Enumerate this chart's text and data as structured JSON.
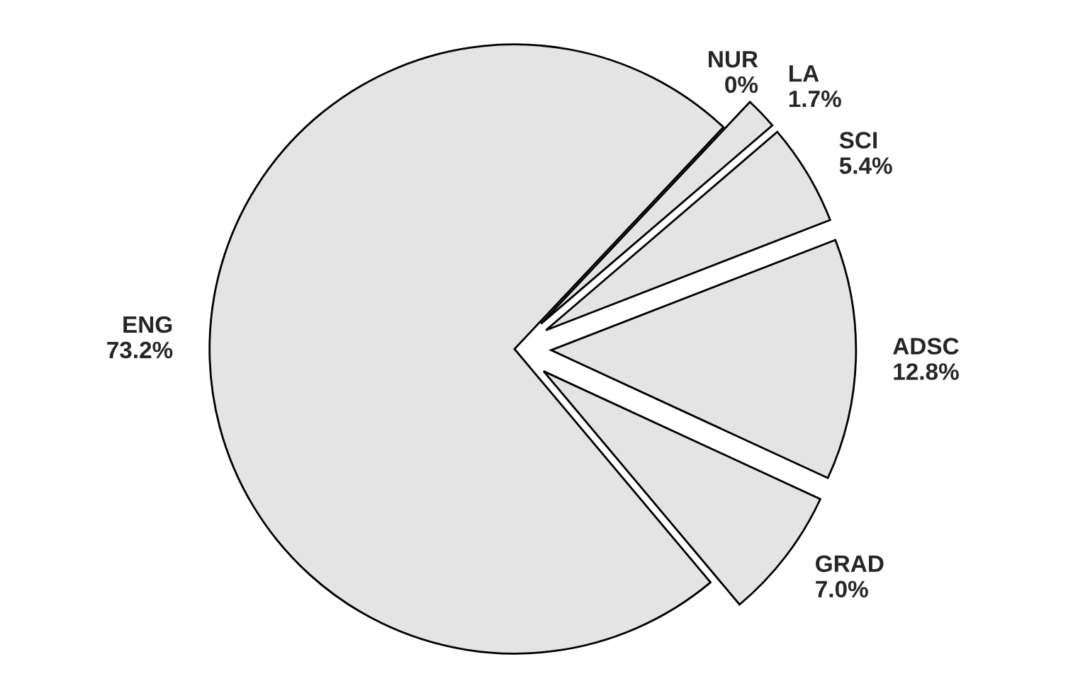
{
  "chart_data": {
    "type": "pie",
    "categories": [
      "GRAD",
      "ADSC",
      "SCI",
      "LA",
      "NUR",
      "ENG"
    ],
    "values": [
      7.0,
      12.8,
      5.4,
      1.7,
      0,
      73.2
    ],
    "value_labels": [
      "7.0%",
      "12.8%",
      "5.4%",
      "1.7%",
      "0%",
      "73.2%"
    ],
    "colors": [
      "#e4e4e4",
      "#e4e4e4",
      "#e4e4e4",
      "#e4e4e4",
      "#e4e4e4",
      "#e4e4e4"
    ]
  }
}
